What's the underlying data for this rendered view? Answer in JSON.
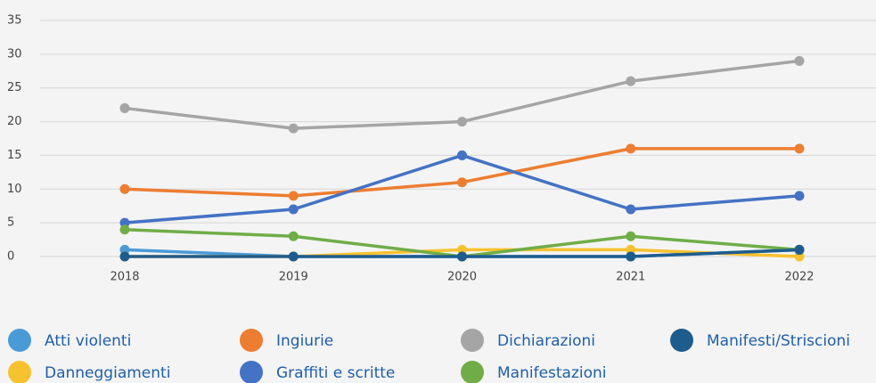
{
  "chart_data": {
    "type": "line",
    "categories": [
      "2018",
      "2019",
      "2020",
      "2021",
      "2022"
    ],
    "series": [
      {
        "name": "Atti violenti",
        "color": "#4a9ad6",
        "values": [
          1,
          0,
          0,
          0,
          1
        ]
      },
      {
        "name": "Danneggiamenti",
        "color": "#f7c22f",
        "values": [
          0,
          0,
          1,
          1,
          0
        ]
      },
      {
        "name": "Ingiurie",
        "color": "#ed7d31",
        "values": [
          10,
          9,
          11,
          16,
          16
        ]
      },
      {
        "name": "Graffiti e scritte",
        "color": "#4472c4",
        "values": [
          5,
          7,
          15,
          7,
          9
        ]
      },
      {
        "name": "Dichiarazioni",
        "color": "#a5a5a5",
        "values": [
          22,
          19,
          20,
          26,
          29
        ]
      },
      {
        "name": "Manifestazioni",
        "color": "#70ad47",
        "values": [
          4,
          3,
          0,
          3,
          1
        ]
      },
      {
        "name": "Manifesti/Striscioni",
        "color": "#1f5c8e",
        "values": [
          0,
          0,
          0,
          0,
          1
        ]
      }
    ],
    "ylim": [
      0,
      35
    ],
    "yticks": [
      0,
      5,
      10,
      15,
      20,
      25,
      30,
      35
    ],
    "grid": true,
    "legend": "bottom"
  }
}
